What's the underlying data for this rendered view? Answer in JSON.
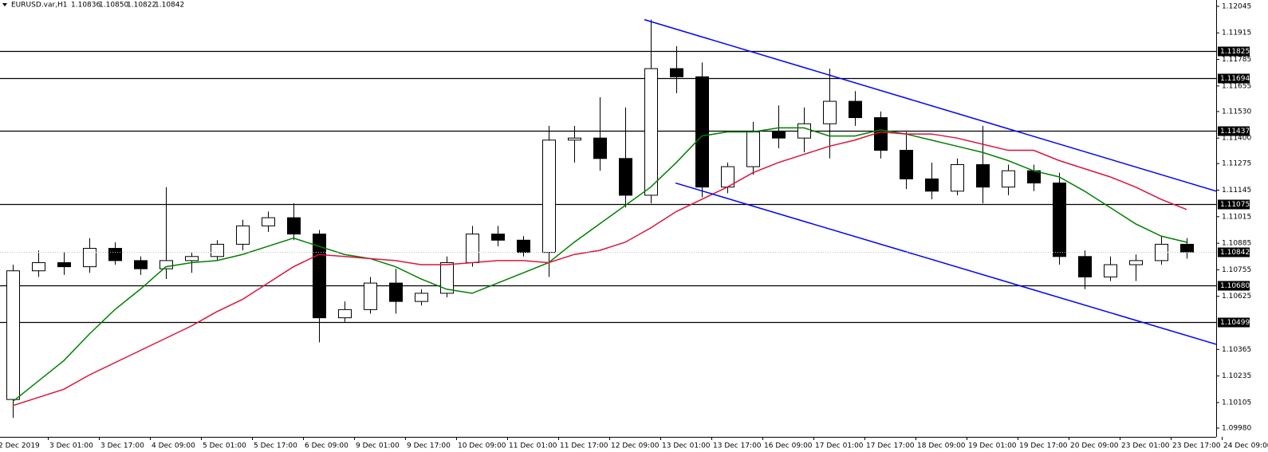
{
  "chart_data": {
    "type": "candlestick",
    "header": {
      "symbol": "EURUSD.var,H1",
      "quote": [
        "1.10836",
        "1.10850",
        "1.10822",
        "1.10842"
      ]
    },
    "x_labels": [
      "2 Dec 2019",
      "3 Dec 01:00",
      "3 Dec 17:00",
      "4 Dec 09:00",
      "5 Dec 01:00",
      "5 Dec 17:00",
      "6 Dec 09:00",
      "9 Dec 01:00",
      "9 Dec 17:00",
      "10 Dec 09:00",
      "11 Dec 01:00",
      "11 Dec 17:00",
      "12 Dec 09:00",
      "13 Dec 01:00",
      "13 Dec 17:00",
      "16 Dec 09:00",
      "17 Dec 01:00",
      "17 Dec 17:00",
      "18 Dec 09:00",
      "19 Dec 01:00",
      "19 Dec 17:00",
      "20 Dec 09:00",
      "23 Dec 01:00",
      "23 Dec 17:00",
      "24 Dec 09:00"
    ],
    "candles": {
      "open": [
        1.1012,
        1.1075,
        1.1079,
        1.1077,
        1.1086,
        1.108,
        1.1076,
        1.108,
        1.1082,
        1.1088,
        1.1097,
        1.1101,
        1.1093,
        1.1052,
        1.1056,
        1.1069,
        1.106,
        1.1064,
        1.1079,
        1.1093,
        1.109,
        1.1084,
        1.1139,
        1.114,
        1.113,
        1.1112,
        1.1174,
        1.117,
        1.1116,
        1.1126,
        1.1143,
        1.114,
        1.1147,
        1.1158,
        1.115,
        1.1134,
        1.112,
        1.1114,
        1.1127,
        1.1116,
        1.1124,
        1.1118,
        1.1082,
        1.1072,
        1.1078,
        1.108,
        1.1088
      ],
      "high": [
        1.1078,
        1.1085,
        1.1084,
        1.1091,
        1.1089,
        1.1082,
        1.1116,
        1.1084,
        1.109,
        1.11,
        1.1104,
        1.1108,
        1.1095,
        1.106,
        1.1072,
        1.1076,
        1.1066,
        1.1082,
        1.1097,
        1.1097,
        1.1092,
        1.1146,
        1.1146,
        1.116,
        1.1155,
        1.1198,
        1.1185,
        1.1177,
        1.1128,
        1.1148,
        1.1156,
        1.1155,
        1.1174,
        1.1163,
        1.1153,
        1.1143,
        1.1128,
        1.113,
        1.1146,
        1.1127,
        1.1127,
        1.1123,
        1.1085,
        1.1082,
        1.1083,
        1.1092,
        1.1091
      ],
      "low": [
        1.1003,
        1.1072,
        1.1073,
        1.1074,
        1.1078,
        1.1073,
        1.1071,
        1.1074,
        1.108,
        1.1085,
        1.1094,
        1.109,
        1.104,
        1.105,
        1.1054,
        1.1054,
        1.1058,
        1.1062,
        1.1077,
        1.1087,
        1.1082,
        1.1072,
        1.1128,
        1.1124,
        1.1106,
        1.1108,
        1.1162,
        1.1111,
        1.1113,
        1.1122,
        1.1135,
        1.1133,
        1.113,
        1.1146,
        1.113,
        1.1115,
        1.111,
        1.1112,
        1.1108,
        1.1112,
        1.1114,
        1.1078,
        1.1066,
        1.107,
        1.107,
        1.1078,
        1.1081
      ],
      "close": [
        1.1075,
        1.1079,
        1.1077,
        1.1086,
        1.108,
        1.1076,
        1.108,
        1.1082,
        1.1088,
        1.1097,
        1.1101,
        1.1093,
        1.1052,
        1.1056,
        1.1069,
        1.106,
        1.1064,
        1.1079,
        1.1093,
        1.109,
        1.1084,
        1.1139,
        1.114,
        1.113,
        1.1112,
        1.1174,
        1.117,
        1.1116,
        1.1126,
        1.1143,
        1.114,
        1.1147,
        1.1158,
        1.115,
        1.1134,
        1.112,
        1.1114,
        1.1127,
        1.1116,
        1.1124,
        1.1118,
        1.1082,
        1.1072,
        1.1078,
        1.108,
        1.1088,
        1.10842
      ]
    },
    "bull_color": "#ffffff",
    "bear_color": "#000000",
    "candle_outline": "#000000",
    "moving_averages": [
      {
        "color": "#008000",
        "values": [
          1.1011,
          1.1021,
          1.1031,
          1.1044,
          1.1056,
          1.1066,
          1.1077,
          1.1079,
          1.108,
          1.1083,
          1.1087,
          1.1091,
          1.1087,
          1.1083,
          1.1081,
          1.1077,
          1.1071,
          1.1066,
          1.1064,
          1.1069,
          1.1074,
          1.1079,
          1.1089,
          1.1098,
          1.1107,
          1.1116,
          1.1128,
          1.1141,
          1.1143,
          1.1143,
          1.1145,
          1.1145,
          1.1141,
          1.1141,
          1.1144,
          1.1142,
          1.1139,
          1.1136,
          1.1133,
          1.1129,
          1.1124,
          1.1121,
          1.1114,
          1.1106,
          1.1098,
          1.1092,
          1.1089
        ]
      },
      {
        "color": "#dc143c",
        "values": [
          1.1009,
          1.1013,
          1.1017,
          1.1024,
          1.103,
          1.1036,
          1.1042,
          1.1048,
          1.1055,
          1.1061,
          1.1069,
          1.1077,
          1.1083,
          1.1082,
          1.1081,
          1.108,
          1.1078,
          1.1078,
          1.1079,
          1.108,
          1.108,
          1.1079,
          1.1083,
          1.1085,
          1.1089,
          1.1096,
          1.1104,
          1.111,
          1.1116,
          1.1123,
          1.1128,
          1.1132,
          1.1136,
          1.1139,
          1.1143,
          1.1142,
          1.1142,
          1.114,
          1.1137,
          1.1134,
          1.1134,
          1.1129,
          1.1125,
          1.1121,
          1.1116,
          1.111,
          1.1105
        ]
      }
    ],
    "levels": [
      1.11825,
      1.11694,
      1.11437,
      1.11075,
      {
        "value": 1.1068,
        "label": "1.10680"
      },
      1.10499
    ],
    "level_color": "#000000",
    "current_price": 1.10842,
    "trendlines": [
      {
        "color": "#0000ff",
        "x": [
          24.75,
          47.16
        ],
        "y": [
          1.1198,
          1.1114
        ]
      },
      {
        "color": "#0000ff",
        "x": [
          25.97,
          47.16
        ],
        "y": [
          1.1118,
          1.1039
        ]
      }
    ],
    "ylim": [
      1.09937,
      1.12076
    ],
    "yticks": [
      1.12045,
      1.11915,
      1.11785,
      1.11655,
      {
        "value": 1.1153,
        "label": "1.11530"
      },
      {
        "value": 1.114,
        "label": "1.11400"
      },
      1.11275,
      1.11145,
      1.11015,
      1.10885,
      1.10755,
      1.10625,
      1.10365,
      1.10235,
      1.10105,
      {
        "value": 1.0998,
        "label": "1.09980"
      }
    ]
  }
}
